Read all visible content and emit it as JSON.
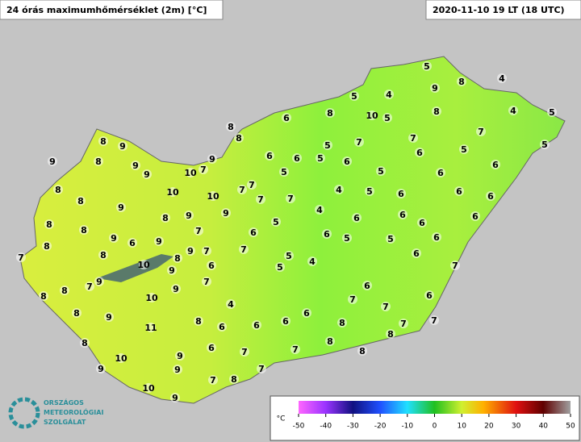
{
  "header": {
    "title": "24 órás maximumhőmérséklet (2m) [°C]",
    "timestamp": "2020-11-10 19 LT (18 UTC)"
  },
  "logo": {
    "lines": [
      "ORSZÁGOS",
      "METEOROLÓGIAI",
      "SZOLGÁLAT"
    ]
  },
  "stations": [
    5,
    8,
    4,
    9,
    4,
    5,
    8,
    10,
    5,
    8,
    6,
    8,
    4,
    5,
    7,
    5,
    7,
    7,
    5,
    8,
    5,
    6,
    5,
    6,
    6,
    6,
    6,
    5,
    6,
    5,
    8,
    9,
    9,
    8,
    9,
    9,
    10,
    7,
    9,
    8,
    10,
    8,
    9,
    10,
    8,
    8,
    9,
    9,
    8,
    9,
    9,
    6,
    7,
    8,
    7,
    8,
    8,
    10,
    6,
    9,
    7,
    7,
    7,
    9,
    9,
    8,
    8,
    9,
    7,
    10,
    8,
    9,
    11,
    8,
    6,
    8,
    10,
    9,
    6,
    9,
    9,
    7,
    8,
    10,
    9,
    4,
    7,
    7,
    7,
    7,
    5,
    6,
    4,
    5,
    6,
    4,
    6,
    4,
    5,
    5,
    6,
    5,
    5,
    6,
    6,
    6,
    6,
    6,
    6,
    6,
    7,
    6,
    7,
    7,
    6,
    6,
    6,
    6,
    8,
    8,
    7,
    7,
    8,
    8,
    7,
    7,
    7
  ],
  "colorbar": {
    "unit": "°C",
    "ticks": [
      -50,
      -40,
      -30,
      -20,
      -10,
      0,
      10,
      20,
      30,
      40,
      50
    ]
  }
}
